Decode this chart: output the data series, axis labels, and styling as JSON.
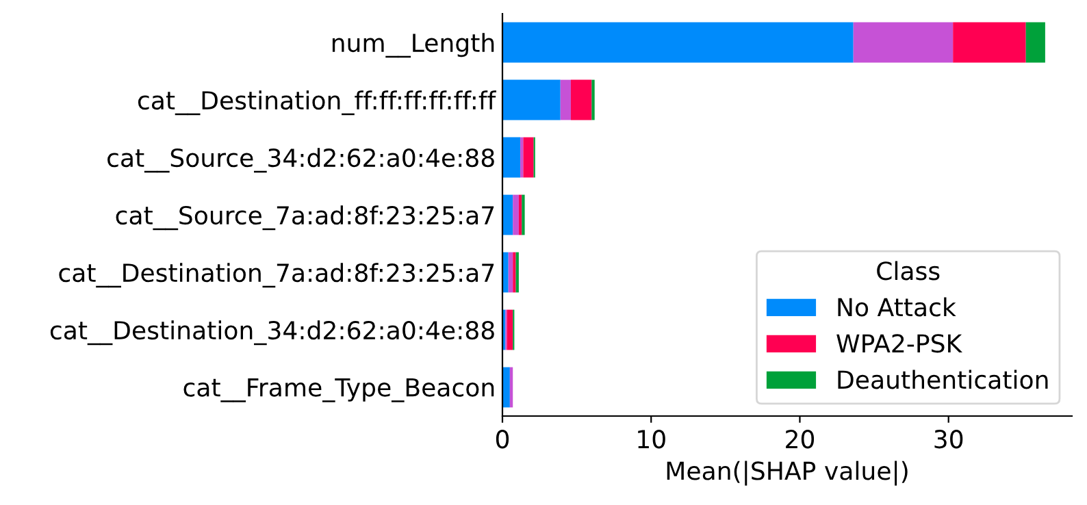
{
  "chart_data": {
    "type": "bar",
    "orientation": "horizontal",
    "stacked": true,
    "categories": [
      "num__Length",
      "cat__Destination_ff:ff:ff:ff:ff:ff",
      "cat__Source_34:d2:62:a0:4e:88",
      "cat__Source_7a:ad:8f:23:25:a7",
      "cat__Destination_7a:ad:8f:23:25:a7",
      "cat__Destination_34:d2:62:a0:4e:88",
      "cat__Frame_Type_Beacon"
    ],
    "series": [
      {
        "name": "No Attack",
        "color": "#008bfb",
        "values": [
          23.6,
          3.9,
          1.2,
          0.7,
          0.4,
          0.2,
          0.5
        ]
      },
      {
        "color": "#c652d6",
        "values": [
          6.7,
          0.7,
          0.2,
          0.4,
          0.3,
          0.1,
          0.2
        ]
      },
      {
        "name": "WPA2-PSK",
        "color": "#ff0052",
        "values": [
          4.9,
          1.4,
          0.7,
          0.2,
          0.2,
          0.4,
          0.0
        ]
      },
      {
        "name": "Deauthentication",
        "color": "#00a13a",
        "values": [
          1.3,
          0.2,
          0.1,
          0.2,
          0.2,
          0.1,
          0.0
        ]
      }
    ],
    "xlabel": "Mean(|SHAP value|)",
    "legend_title": "Class",
    "legend": "bottom right",
    "xlim": [
      0,
      38.3
    ],
    "xticks": [
      0,
      10,
      20,
      30
    ],
    "grid": false
  }
}
